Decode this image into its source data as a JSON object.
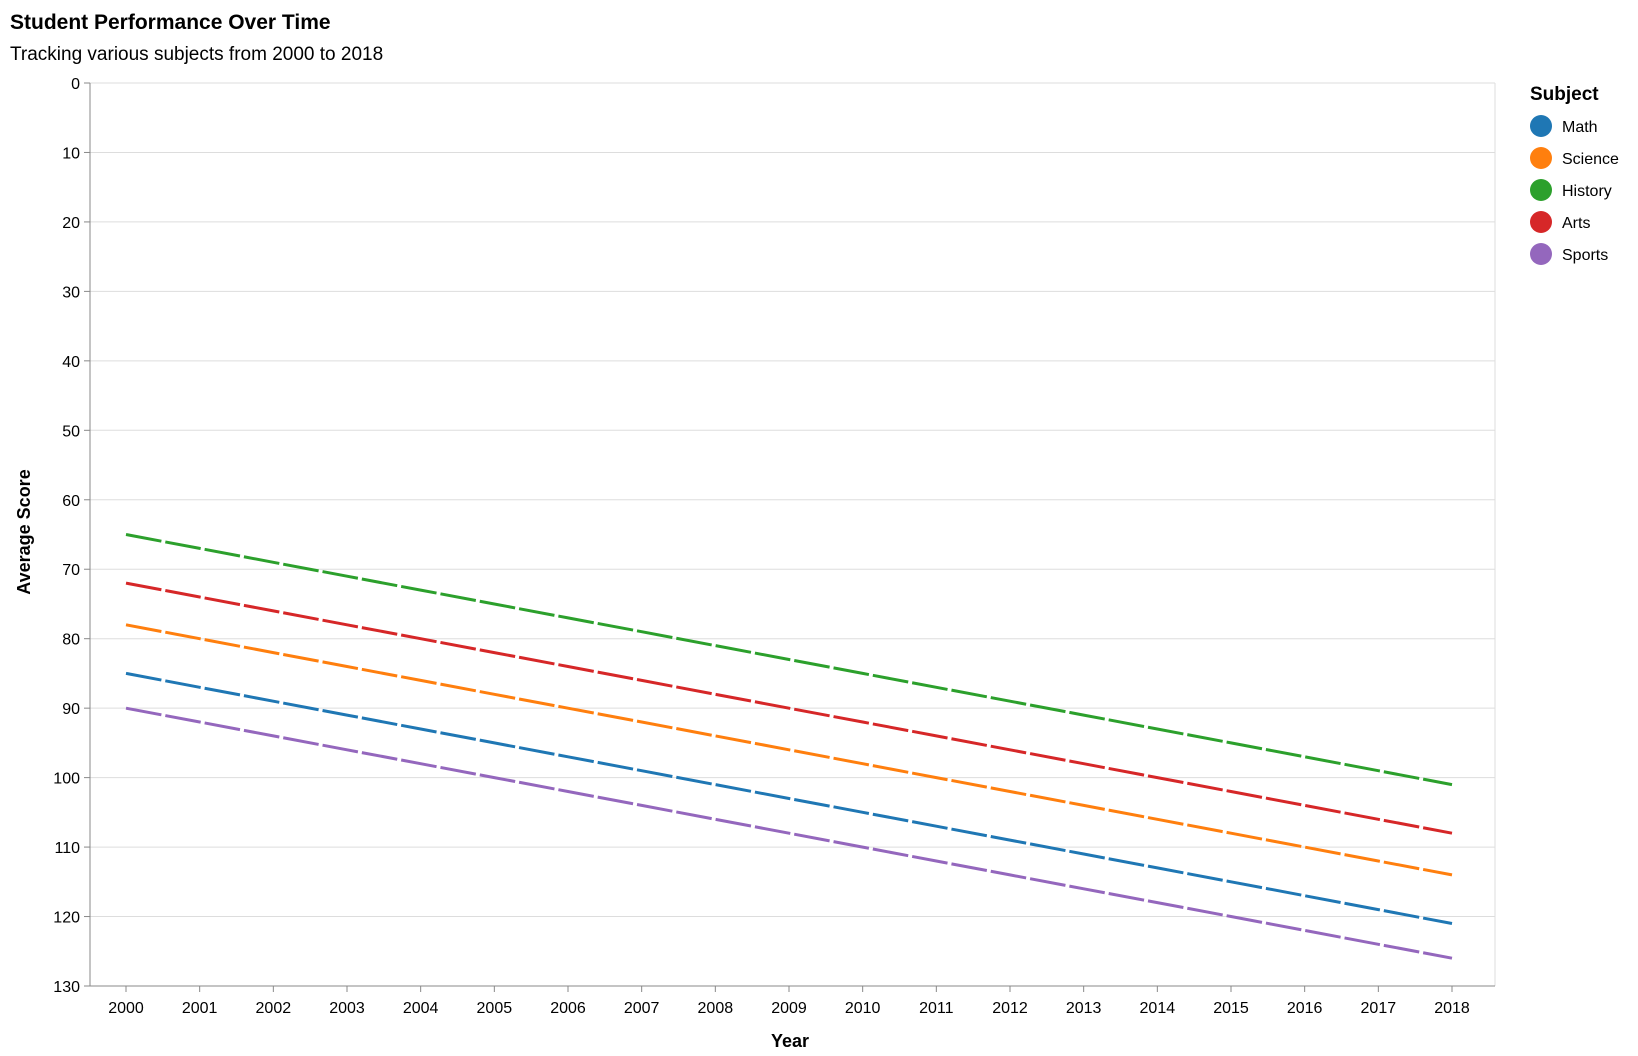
{
  "chart_data": {
    "type": "line",
    "title": "Student Performance Over Time",
    "subtitle": "Tracking various subjects from 2000 to 2018",
    "xlabel": "Year",
    "ylabel": "Average Score",
    "x": [
      "2000",
      "2001",
      "2002",
      "2003",
      "2004",
      "2005",
      "2006",
      "2007",
      "2008",
      "2009",
      "2010",
      "2011",
      "2012",
      "2013",
      "2014",
      "2015",
      "2016",
      "2017",
      "2018"
    ],
    "yticks": [
      0,
      10,
      20,
      30,
      40,
      50,
      60,
      70,
      80,
      90,
      100,
      110,
      120,
      130
    ],
    "ylim": [
      0,
      130
    ],
    "y_reversed": true,
    "grid": "horizontal",
    "legend": {
      "title": "Subject",
      "placement": "top-right"
    },
    "line_style": "dashed",
    "series": [
      {
        "name": "Math",
        "color": "#1f77b4",
        "values": [
          85,
          87,
          89,
          91,
          93,
          95,
          97,
          99,
          101,
          103,
          105,
          107,
          109,
          111,
          113,
          115,
          117,
          119,
          121
        ]
      },
      {
        "name": "Science",
        "color": "#ff7f0e",
        "values": [
          78,
          80,
          82,
          84,
          86,
          88,
          90,
          92,
          94,
          96,
          98,
          100,
          102,
          104,
          106,
          108,
          110,
          112,
          114
        ]
      },
      {
        "name": "History",
        "color": "#2ca02c",
        "values": [
          65,
          67,
          69,
          71,
          73,
          75,
          77,
          79,
          81,
          83,
          85,
          87,
          89,
          91,
          93,
          95,
          97,
          99,
          101
        ]
      },
      {
        "name": "Arts",
        "color": "#d62728",
        "values": [
          72,
          74,
          76,
          78,
          80,
          82,
          84,
          86,
          88,
          90,
          92,
          94,
          96,
          98,
          100,
          102,
          104,
          106,
          108
        ]
      },
      {
        "name": "Sports",
        "color": "#9467bd",
        "values": [
          90,
          92,
          94,
          96,
          98,
          100,
          102,
          104,
          106,
          108,
          110,
          112,
          114,
          116,
          118,
          120,
          122,
          124,
          126
        ]
      }
    ]
  }
}
